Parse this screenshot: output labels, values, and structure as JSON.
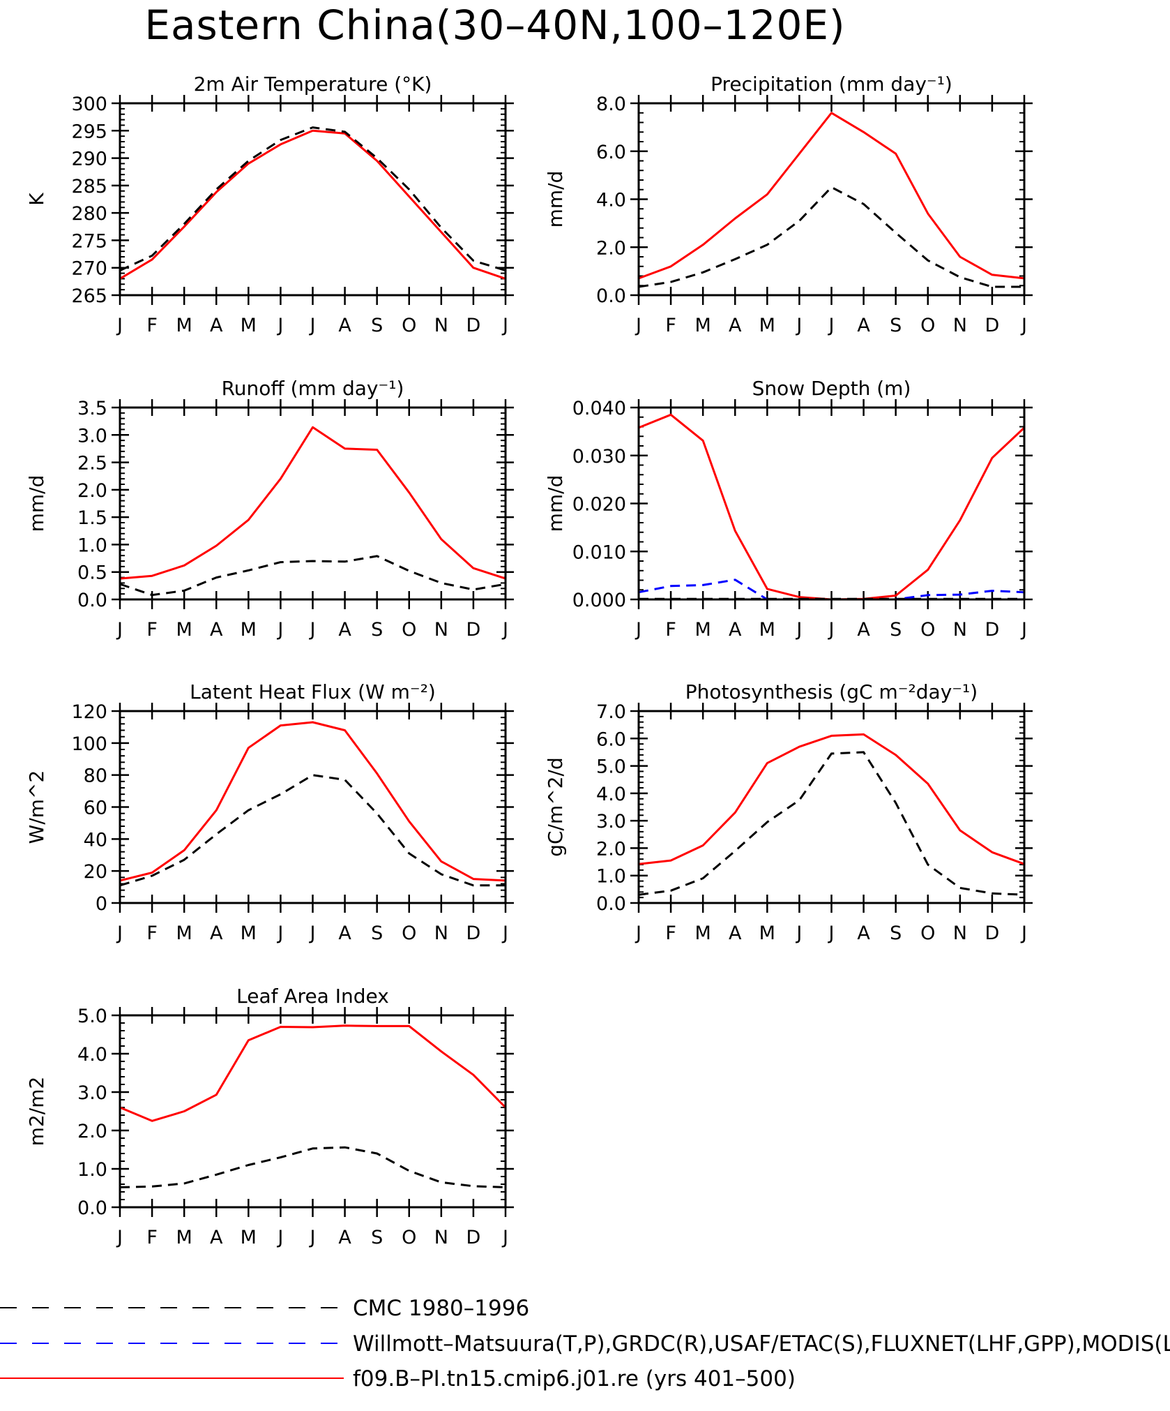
{
  "title": "Eastern China(30–40N,100–120E)",
  "months": [
    "J",
    "F",
    "M",
    "A",
    "M",
    "J",
    "J",
    "A",
    "S",
    "O",
    "N",
    "D",
    "J"
  ],
  "colors": {
    "obs": "#000000",
    "obs2": "#0000ff",
    "model": "#ff0000",
    "axis": "#000000"
  },
  "legend": [
    {
      "label": "CMC 1980–1996",
      "color": "#000000",
      "style": "dashed"
    },
    {
      "label": "Willmott–Matsuura(T,P),GRDC(R),USAF/ETAC(S),FLUXNET(LHF,GPP),MODIS(L",
      "color": "#0000ff",
      "style": "dashed"
    },
    {
      "label": "f09.B–PI.tn15.cmip6.j01.re (yrs 401–500)",
      "color": "#ff0000",
      "style": "solid"
    }
  ],
  "chart_data": [
    {
      "type": "line",
      "title": "2m Air Temperature (°K)",
      "ylabel": "K",
      "ylim": [
        265,
        300
      ],
      "ytick_labels": [
        "265",
        "270",
        "275",
        "280",
        "285",
        "290",
        "295",
        "300"
      ],
      "ytick_values": [
        265,
        270,
        275,
        280,
        285,
        290,
        295,
        300
      ],
      "categories": [
        "J",
        "F",
        "M",
        "A",
        "M",
        "J",
        "J",
        "A",
        "S",
        "O",
        "N",
        "D",
        "J"
      ],
      "series": [
        {
          "name": "f09.B–PI.tn15.cmip6.j01.re (yrs 401–500)",
          "color": "#ff0000",
          "dash": "solid",
          "values": [
            268.0,
            271.5,
            277.5,
            283.8,
            289.0,
            292.5,
            295.0,
            294.5,
            289.5,
            283.0,
            276.5,
            270.0,
            268.0
          ]
        },
        {
          "name": "CMC 1980–1996",
          "color": "#000000",
          "dash": "dashed",
          "values": [
            269.5,
            272.2,
            278.0,
            284.3,
            289.5,
            293.3,
            295.6,
            294.8,
            290.0,
            284.3,
            277.3,
            271.3,
            269.5
          ]
        }
      ]
    },
    {
      "type": "line",
      "title": "Precipitation (mm day⁻¹)",
      "ylabel": "mm/d",
      "ylim": [
        0,
        8
      ],
      "ytick_labels": [
        "0.0",
        "2.0",
        "4.0",
        "6.0",
        "8.0"
      ],
      "ytick_values": [
        0,
        2,
        4,
        6,
        8
      ],
      "categories": [
        "J",
        "F",
        "M",
        "A",
        "M",
        "J",
        "J",
        "A",
        "S",
        "O",
        "N",
        "D",
        "J"
      ],
      "series": [
        {
          "name": "f09.B–PI.tn15.cmip6.j01.re (yrs 401–500)",
          "color": "#ff0000",
          "dash": "solid",
          "values": [
            0.7,
            1.2,
            2.1,
            3.2,
            4.2,
            5.9,
            7.6,
            6.8,
            5.9,
            3.4,
            1.6,
            0.85,
            0.7
          ]
        },
        {
          "name": "CMC 1980–1996",
          "color": "#000000",
          "dash": "dashed",
          "values": [
            0.35,
            0.55,
            0.95,
            1.5,
            2.1,
            3.1,
            4.5,
            3.8,
            2.6,
            1.45,
            0.75,
            0.35,
            0.35
          ]
        }
      ]
    },
    {
      "type": "line",
      "title": "Runoff (mm day⁻¹)",
      "ylabel": "mm/d",
      "ylim": [
        0,
        3.5
      ],
      "ytick_labels": [
        "0.0",
        "0.5",
        "1.0",
        "1.5",
        "2.0",
        "2.5",
        "3.0",
        "3.5"
      ],
      "ytick_values": [
        0,
        0.5,
        1.0,
        1.5,
        2.0,
        2.5,
        3.0,
        3.5
      ],
      "categories": [
        "J",
        "F",
        "M",
        "A",
        "M",
        "J",
        "J",
        "A",
        "S",
        "O",
        "N",
        "D",
        "J"
      ],
      "series": [
        {
          "name": "f09.B–PI.tn15.cmip6.j01.re (yrs 401–500)",
          "color": "#ff0000",
          "dash": "solid",
          "values": [
            0.38,
            0.43,
            0.62,
            0.98,
            1.45,
            2.2,
            3.14,
            2.75,
            2.73,
            1.95,
            1.1,
            0.57,
            0.38
          ]
        },
        {
          "name": "CMC 1980–1996",
          "color": "#000000",
          "dash": "dashed",
          "values": [
            0.28,
            0.08,
            0.16,
            0.4,
            0.53,
            0.68,
            0.7,
            0.69,
            0.79,
            0.52,
            0.3,
            0.18,
            0.28
          ]
        }
      ]
    },
    {
      "type": "line",
      "title": "Snow Depth (m)",
      "ylabel": "mm/d",
      "ylim": [
        0,
        0.04
      ],
      "ytick_labels": [
        "0.000",
        "0.010",
        "0.020",
        "0.030",
        "0.040"
      ],
      "ytick_values": [
        0,
        0.01,
        0.02,
        0.03,
        0.04
      ],
      "categories": [
        "J",
        "F",
        "M",
        "A",
        "M",
        "J",
        "J",
        "A",
        "S",
        "O",
        "N",
        "D",
        "J"
      ],
      "series": [
        {
          "name": "f09.B–PI.tn15.cmip6.j01.re (yrs 401–500)",
          "color": "#ff0000",
          "dash": "solid",
          "values": [
            0.0358,
            0.0385,
            0.0331,
            0.0143,
            0.0022,
            0.0005,
            0.0,
            0.0001,
            0.0008,
            0.0062,
            0.0165,
            0.0295,
            0.0358
          ]
        },
        {
          "name": "CMC 1980–1996",
          "color": "#000000",
          "dash": "dashed",
          "values": [
            0.0001,
            0.0001,
            0.0001,
            0.0001,
            0.0001,
            0.0001,
            0.0001,
            0.0001,
            0.0001,
            0.0001,
            0.0001,
            0.0001,
            0.0001
          ]
        },
        {
          "name": "Willmott–Matsuura(T,P),GRDC(R),USAF/ETAC(S),FLUXNET(LHF,GPP),MODIS(L",
          "color": "#0000ff",
          "dash": "dashed",
          "values": [
            0.0015,
            0.0028,
            0.003,
            0.0041,
            0.0,
            0.0,
            0.0,
            0.0,
            0.0,
            0.0009,
            0.001,
            0.0018,
            0.0015
          ]
        }
      ]
    },
    {
      "type": "line",
      "title": "Latent Heat Flux (W m⁻²)",
      "ylabel": "W/m^2",
      "ylim": [
        0,
        120
      ],
      "ytick_labels": [
        "0",
        "20",
        "40",
        "60",
        "80",
        "100",
        "120"
      ],
      "ytick_values": [
        0,
        20,
        40,
        60,
        80,
        100,
        120
      ],
      "categories": [
        "J",
        "F",
        "M",
        "A",
        "M",
        "J",
        "J",
        "A",
        "S",
        "O",
        "N",
        "D",
        "J"
      ],
      "series": [
        {
          "name": "f09.B–PI.tn15.cmip6.j01.re (yrs 401–500)",
          "color": "#ff0000",
          "dash": "solid",
          "values": [
            14,
            19,
            33,
            58,
            97,
            111,
            113,
            108,
            81,
            51,
            26,
            15,
            14
          ]
        },
        {
          "name": "CMC 1980–1996",
          "color": "#000000",
          "dash": "dashed",
          "values": [
            11,
            17,
            27,
            43,
            58,
            68,
            80,
            77,
            56,
            31,
            18,
            11,
            11
          ]
        }
      ]
    },
    {
      "type": "line",
      "title": "Photosynthesis (gC m⁻²day⁻¹)",
      "ylabel": "gC/m^2/d",
      "ylim": [
        0,
        7
      ],
      "ytick_labels": [
        "0.0",
        "1.0",
        "2.0",
        "3.0",
        "4.0",
        "5.0",
        "6.0",
        "7.0"
      ],
      "ytick_values": [
        0,
        1,
        2,
        3,
        4,
        5,
        6,
        7
      ],
      "categories": [
        "J",
        "F",
        "M",
        "A",
        "M",
        "J",
        "J",
        "A",
        "S",
        "O",
        "N",
        "D",
        "J"
      ],
      "series": [
        {
          "name": "f09.B–PI.tn15.cmip6.j01.re (yrs 401–500)",
          "color": "#ff0000",
          "dash": "solid",
          "values": [
            1.42,
            1.55,
            2.1,
            3.3,
            5.1,
            5.7,
            6.1,
            6.15,
            5.4,
            4.35,
            2.65,
            1.85,
            1.42
          ]
        },
        {
          "name": "CMC 1980–1996",
          "color": "#000000",
          "dash": "dashed",
          "values": [
            0.3,
            0.45,
            0.9,
            1.9,
            2.95,
            3.75,
            5.45,
            5.5,
            3.65,
            1.4,
            0.55,
            0.35,
            0.3
          ]
        }
      ]
    },
    {
      "type": "line",
      "title": "Leaf Area Index",
      "ylabel": "m2/m2",
      "ylim": [
        0,
        5
      ],
      "ytick_labels": [
        "0.0",
        "1.0",
        "2.0",
        "3.0",
        "4.0",
        "5.0"
      ],
      "ytick_values": [
        0,
        1,
        2,
        3,
        4,
        5
      ],
      "categories": [
        "J",
        "F",
        "M",
        "A",
        "M",
        "J",
        "J",
        "A",
        "S",
        "O",
        "N",
        "D",
        "J"
      ],
      "series": [
        {
          "name": "f09.B–PI.tn15.cmip6.j01.re (yrs 401–500)",
          "color": "#ff0000",
          "dash": "solid",
          "values": [
            2.6,
            2.25,
            2.5,
            2.93,
            4.35,
            4.7,
            4.69,
            4.73,
            4.72,
            4.72,
            4.06,
            3.45,
            2.6
          ]
        },
        {
          "name": "CMC 1980–1996",
          "color": "#000000",
          "dash": "dashed",
          "values": [
            0.52,
            0.54,
            0.62,
            0.85,
            1.1,
            1.3,
            1.53,
            1.56,
            1.4,
            0.95,
            0.65,
            0.55,
            0.52
          ]
        }
      ]
    }
  ]
}
